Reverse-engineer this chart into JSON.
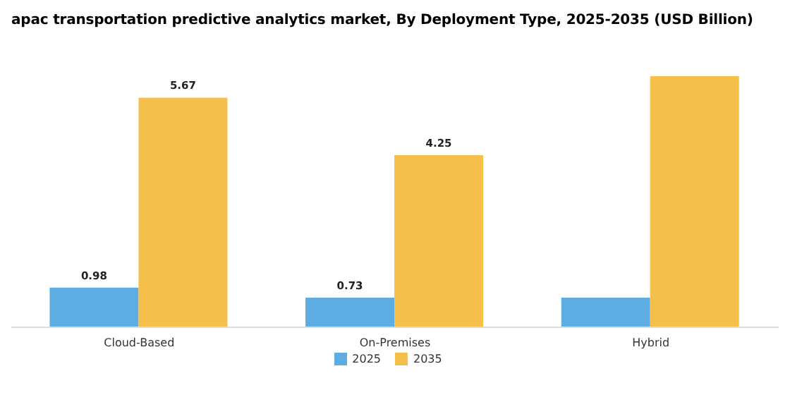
{
  "chart_data": {
    "type": "bar",
    "title": "apac transportation predictive analytics market, By Deployment Type, 2025-2035 (USD Billion)",
    "categories": [
      "Cloud-Based",
      "On-Premises",
      "Hybrid"
    ],
    "series": [
      {
        "name": "2025",
        "color": "#5dade2",
        "values": [
          0.98,
          0.73,
          0.73
        ],
        "value_labels": [
          "0.98",
          "0.73",
          null
        ]
      },
      {
        "name": "2035",
        "color": "#f5c04a",
        "values": [
          5.67,
          4.25,
          6.2
        ],
        "value_labels": [
          "5.67",
          "4.25",
          null
        ]
      }
    ],
    "grid": false,
    "legend": "bottom"
  }
}
